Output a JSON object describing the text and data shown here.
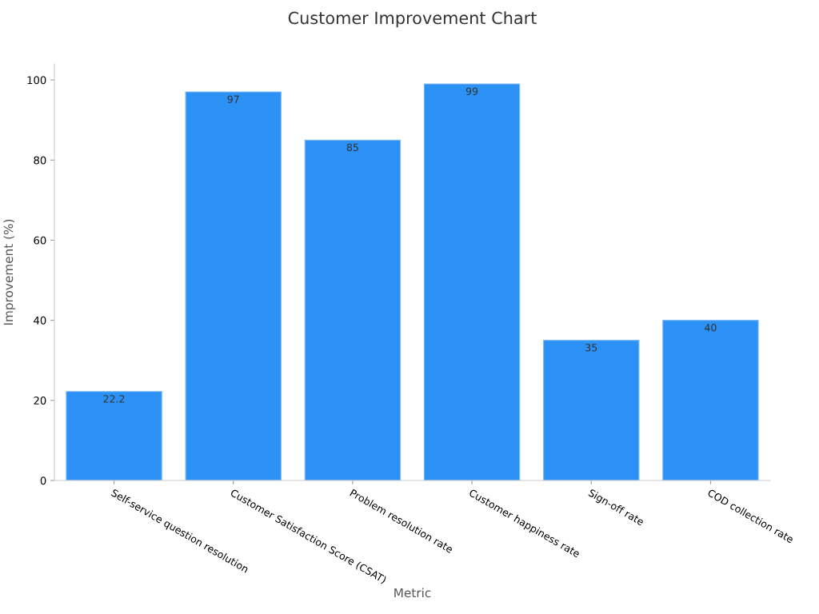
{
  "chart_data": {
    "type": "bar",
    "title": "Customer Improvement Chart",
    "xlabel": "Metric",
    "ylabel": "Improvement (%)",
    "categories": [
      "Self-service question resolution",
      "Customer Satisfaction Score (CSAT)",
      "Problem resolution rate",
      "Customer happiness rate",
      "Sign-off rate",
      "COD collection rate"
    ],
    "values": [
      22.2,
      97,
      85,
      99,
      35,
      40
    ],
    "color": "#2c91f5",
    "ylim": [
      0,
      104
    ],
    "yticks": [
      0,
      20,
      40,
      60,
      80,
      100
    ],
    "grid": false,
    "data_labels": true
  }
}
